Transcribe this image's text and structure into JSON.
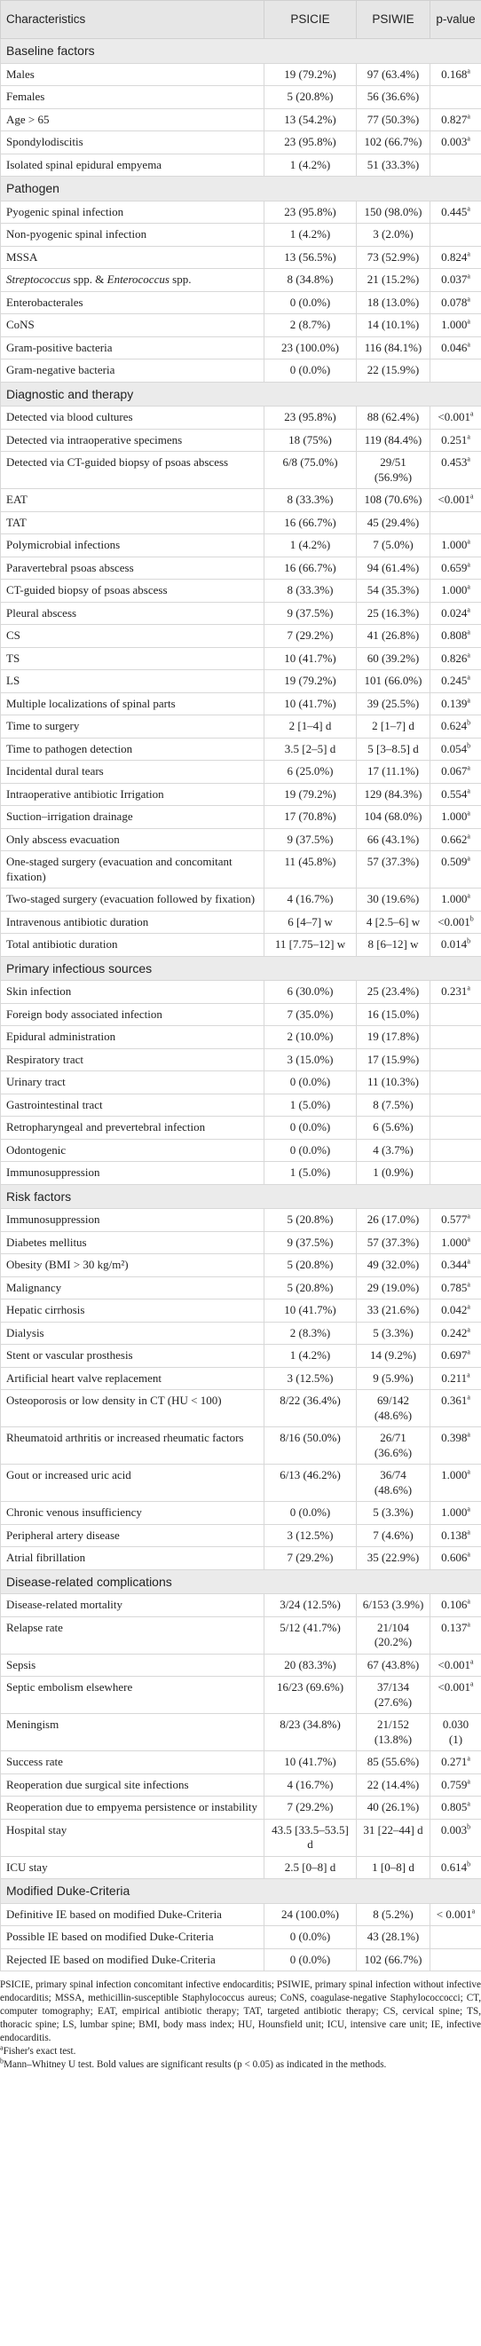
{
  "table": {
    "header": [
      "Characteristics",
      "PSICIE",
      "PSIWIE",
      "p-value"
    ],
    "sections": [
      {
        "title": "Baseline factors",
        "rows": [
          {
            "label": "Males",
            "cells": [
              "19 (79.2%)",
              "97 (63.4%)",
              "0.168"
            ],
            "sup": "a"
          },
          {
            "label": "Females",
            "cells": [
              "5 (20.8%)",
              "56 (36.6%)"
            ]
          },
          {
            "label": "Age > 65",
            "cells": [
              "13 (54.2%)",
              "77 (50.3%)",
              "0.827"
            ],
            "sup": "a"
          },
          {
            "label": "Spondylodiscitis",
            "cells": [
              "23 (95.8%)",
              "102 (66.7%)",
              "0.003"
            ],
            "sup": "a"
          },
          {
            "label": "Isolated spinal epidural empyema",
            "cells": [
              "1 (4.2%)",
              "51 (33.3%)"
            ]
          }
        ]
      },
      {
        "title": "Pathogen",
        "rows": [
          {
            "label": "Pyogenic spinal infection",
            "cells": [
              "23 (95.8%)",
              "150 (98.0%)",
              "0.445"
            ],
            "sup": "a"
          },
          {
            "label": "Non-pyogenic spinal infection",
            "cells": [
              "1 (4.2%)",
              "3 (2.0%)"
            ]
          },
          {
            "label": "MSSA",
            "cells": [
              "13 (56.5%)",
              "73 (52.9%)",
              "0.824"
            ],
            "sup": "a"
          },
          {
            "label": [
              {
                "text": "Streptococcus",
                "italic": true
              },
              {
                "text": " spp. & "
              },
              {
                "text": "Enterococcus",
                "italic": true
              },
              {
                "text": " spp."
              }
            ],
            "cells": [
              "8 (34.8%)",
              "21 (15.2%)",
              "0.037"
            ],
            "sup": "a"
          },
          {
            "label": "Enterobacterales",
            "cells": [
              "0 (0.0%)",
              "18 (13.0%)",
              "0.078"
            ],
            "sup": "a"
          },
          {
            "label": "CoNS",
            "cells": [
              "2 (8.7%)",
              "14 (10.1%)",
              "1.000"
            ],
            "sup": "a"
          },
          {
            "label": "Gram-positive bacteria",
            "cells": [
              "23 (100.0%)",
              "116 (84.1%)",
              "0.046"
            ],
            "sup": "a"
          },
          {
            "label": "Gram-negative bacteria",
            "cells": [
              "0 (0.0%)",
              "22 (15.9%)"
            ]
          }
        ]
      },
      {
        "title": "Diagnostic and therapy",
        "rows": [
          {
            "label": "Detected via blood cultures",
            "cells": [
              "23 (95.8%)",
              "88 (62.4%)",
              "<0.001"
            ],
            "sup": "a"
          },
          {
            "label": "Detected via intraoperative specimens",
            "cells": [
              "18 (75%)",
              "119 (84.4%)",
              "0.251"
            ],
            "sup": "a"
          },
          {
            "label": "Detected via CT-guided biopsy of psoas abscess",
            "cells": [
              "6/8 (75.0%)",
              "29/51 (56.9%)",
              "0.453"
            ],
            "sup": "a"
          },
          {
            "label": "EAT",
            "cells": [
              "8 (33.3%)",
              "108 (70.6%)",
              "<0.001"
            ],
            "sup": "a"
          },
          {
            "label": "TAT",
            "cells": [
              "16 (66.7%)",
              "45 (29.4%)"
            ]
          },
          {
            "label": "Polymicrobial infections",
            "cells": [
              "1 (4.2%)",
              "7 (5.0%)",
              "1.000"
            ],
            "sup": "a"
          },
          {
            "label": "Paravertebral psoas abscess",
            "cells": [
              "16 (66.7%)",
              "94 (61.4%)",
              "0.659"
            ],
            "sup": "a"
          },
          {
            "label": "CT-guided biopsy of psoas abscess",
            "cells": [
              "8 (33.3%)",
              "54 (35.3%)",
              "1.000"
            ],
            "sup": "a"
          },
          {
            "label": "Pleural abscess",
            "cells": [
              "9 (37.5%)",
              "25 (16.3%)",
              "0.024"
            ],
            "sup": "a"
          },
          {
            "label": "CS",
            "cells": [
              "7 (29.2%)",
              "41 (26.8%)",
              "0.808"
            ],
            "sup": "a"
          },
          {
            "label": "TS",
            "cells": [
              "10 (41.7%)",
              "60 (39.2%)",
              "0.826"
            ],
            "sup": "a"
          },
          {
            "label": "LS",
            "cells": [
              "19 (79.2%)",
              "101 (66.0%)",
              "0.245"
            ],
            "sup": "a"
          },
          {
            "label": "Multiple localizations of spinal parts",
            "cells": [
              "10 (41.7%)",
              "39 (25.5%)",
              "0.139"
            ],
            "sup": "a"
          },
          {
            "label": "Time to surgery",
            "cells": [
              "2 [1–4] d",
              "2 [1–7] d",
              "0.624"
            ],
            "sup": "b"
          },
          {
            "label": "Time to pathogen detection",
            "cells": [
              "3.5 [2–5] d",
              "5 [3–8.5] d",
              "0.054"
            ],
            "sup": "b"
          },
          {
            "label": "Incidental dural tears",
            "cells": [
              "6 (25.0%)",
              "17 (11.1%)",
              "0.067"
            ],
            "sup": "a"
          },
          {
            "label": "Intraoperative antibiotic Irrigation",
            "cells": [
              "19 (79.2%)",
              "129 (84.3%)",
              "0.554"
            ],
            "sup": "a"
          },
          {
            "label": "Suction–irrigation drainage",
            "cells": [
              "17 (70.8%)",
              "104 (68.0%)",
              "1.000"
            ],
            "sup": "a"
          },
          {
            "label": "Only abscess evacuation",
            "cells": [
              "9 (37.5%)",
              "66 (43.1%)",
              "0.662"
            ],
            "sup": "a"
          },
          {
            "label": "One-staged surgery (evacuation and concomitant fixation)",
            "cells": [
              "11 (45.8%)",
              "57 (37.3%)",
              "0.509"
            ],
            "sup": "a"
          },
          {
            "label": "Two-staged surgery (evacuation followed by fixation)",
            "cells": [
              "4 (16.7%)",
              "30 (19.6%)",
              "1.000"
            ],
            "sup": "a"
          },
          {
            "label": "Intravenous antibiotic duration",
            "cells": [
              "6 [4–7] w",
              "4 [2.5–6] w",
              "<0.001"
            ],
            "sup": "b"
          },
          {
            "label": "Total antibiotic duration",
            "cells": [
              "11 [7.75–12] w",
              "8 [6–12] w",
              "0.014"
            ],
            "sup": "b"
          }
        ]
      },
      {
        "title": "Primary infectious sources",
        "rows": [
          {
            "label": "Skin infection",
            "cells": [
              "6 (30.0%)",
              "25 (23.4%)",
              "0.231"
            ],
            "sup": "a"
          },
          {
            "label": "Foreign body associated infection",
            "cells": [
              "7 (35.0%)",
              "16 (15.0%)"
            ]
          },
          {
            "label": "Epidural administration",
            "cells": [
              "2 (10.0%)",
              "19 (17.8%)"
            ]
          },
          {
            "label": "Respiratory tract",
            "cells": [
              "3 (15.0%)",
              "17 (15.9%)"
            ]
          },
          {
            "label": "Urinary tract",
            "cells": [
              "0 (0.0%)",
              "11 (10.3%)"
            ]
          },
          {
            "label": "Gastrointestinal tract",
            "cells": [
              "1 (5.0%)",
              "8 (7.5%)"
            ]
          },
          {
            "label": "Retropharyngeal and prevertebral infection",
            "cells": [
              "0 (0.0%)",
              "6 (5.6%)"
            ]
          },
          {
            "label": "Odontogenic",
            "cells": [
              "0 (0.0%)",
              "4 (3.7%)"
            ]
          },
          {
            "label": "Immunosuppression",
            "cells": [
              "1 (5.0%)",
              "1 (0.9%)"
            ]
          }
        ]
      },
      {
        "title": "Risk factors",
        "rows": [
          {
            "label": "Immunosuppression",
            "cells": [
              "5 (20.8%)",
              "26 (17.0%)",
              "0.577"
            ],
            "sup": "a"
          },
          {
            "label": "Diabetes mellitus",
            "cells": [
              "9 (37.5%)",
              "57 (37.3%)",
              "1.000"
            ],
            "sup": "a"
          },
          {
            "label": "Obesity (BMI > 30 kg/m²)",
            "cells": [
              "5 (20.8%)",
              "49 (32.0%)",
              "0.344"
            ],
            "sup": "a"
          },
          {
            "label": "Malignancy",
            "cells": [
              "5 (20.8%)",
              "29 (19.0%)",
              "0.785"
            ],
            "sup": "a"
          },
          {
            "label": "Hepatic cirrhosis",
            "cells": [
              "10 (41.7%)",
              "33 (21.6%)",
              "0.042"
            ],
            "sup": "a"
          },
          {
            "label": "Dialysis",
            "cells": [
              "2 (8.3%)",
              "5 (3.3%)",
              "0.242"
            ],
            "sup": "a"
          },
          {
            "label": "Stent or vascular prosthesis",
            "cells": [
              "1 (4.2%)",
              "14 (9.2%)",
              "0.697"
            ],
            "sup": "a"
          },
          {
            "label": "Artificial heart valve replacement",
            "cells": [
              "3 (12.5%)",
              "9 (5.9%)",
              "0.211"
            ],
            "sup": "a"
          },
          {
            "label": "Osteoporosis or low density in CT (HU < 100)",
            "cells": [
              "8/22 (36.4%)",
              "69/142 (48.6%)",
              "0.361"
            ],
            "sup": "a"
          },
          {
            "label": "Rheumatoid arthritis or increased rheumatic factors",
            "cells": [
              "8/16 (50.0%)",
              "26/71 (36.6%)",
              "0.398"
            ],
            "sup": "a"
          },
          {
            "label": "Gout or increased uric acid",
            "cells": [
              "6/13 (46.2%)",
              "36/74 (48.6%)",
              "1.000"
            ],
            "sup": "a"
          },
          {
            "label": "Chronic venous insufficiency",
            "cells": [
              "0 (0.0%)",
              "5 (3.3%)",
              "1.000"
            ],
            "sup": "a"
          },
          {
            "label": "Peripheral artery disease",
            "cells": [
              "3 (12.5%)",
              "7 (4.6%)",
              "0.138"
            ],
            "sup": "a"
          },
          {
            "label": "Atrial fibrillation",
            "cells": [
              "7 (29.2%)",
              "35 (22.9%)",
              "0.606"
            ],
            "sup": "a"
          }
        ]
      },
      {
        "title": "Disease-related complications",
        "rows": [
          {
            "label": "Disease-related mortality",
            "cells": [
              "3/24 (12.5%)",
              "6/153 (3.9%)",
              "0.106"
            ],
            "sup": "a"
          },
          {
            "label": "Relapse rate",
            "cells": [
              "5/12 (41.7%)",
              "21/104 (20.2%)",
              "0.137"
            ],
            "sup": "a"
          },
          {
            "label": "Sepsis",
            "cells": [
              "20 (83.3%)",
              "67 (43.8%)",
              "<0.001"
            ],
            "sup": "a"
          },
          {
            "label": "Septic embolism elsewhere",
            "cells": [
              "16/23 (69.6%)",
              "37/134 (27.6%)",
              "<0.001"
            ],
            "sup": "a"
          },
          {
            "label": "Meningism",
            "cells": [
              "8/23 (34.8%)",
              "21/152 (13.8%)",
              "0.030 (1)"
            ]
          },
          {
            "label": "Success rate",
            "cells": [
              "10 (41.7%)",
              "85 (55.6%)",
              "0.271"
            ],
            "sup": "a"
          },
          {
            "label": "Reoperation due surgical site infections",
            "cells": [
              "4 (16.7%)",
              "22 (14.4%)",
              "0.759"
            ],
            "sup": "a"
          },
          {
            "label": "Reoperation due to empyema persistence or instability",
            "cells": [
              "7 (29.2%)",
              "40 (26.1%)",
              "0.805"
            ],
            "sup": "a"
          },
          {
            "label": "Hospital stay",
            "cells": [
              "43.5 [33.5–53.5] d",
              "31 [22–44] d",
              "0.003"
            ],
            "sup": "b"
          },
          {
            "label": "ICU stay",
            "cells": [
              "2.5 [0–8] d",
              "1 [0–8] d",
              "0.614"
            ],
            "sup": "b"
          }
        ]
      },
      {
        "title": "Modified Duke-Criteria",
        "rows": [
          {
            "label": "Definitive IE based on modified Duke-Criteria",
            "cells": [
              "24 (100.0%)",
              "8 (5.2%)",
              "< 0.001"
            ],
            "sup": "a"
          },
          {
            "label": "Possible IE based on modified Duke-Criteria",
            "cells": [
              "0 (0.0%)",
              "43 (28.1%)"
            ]
          },
          {
            "label": "Rejected IE based on modified Duke-Criteria",
            "cells": [
              "0 (0.0%)",
              "102 (66.7%)"
            ]
          }
        ]
      }
    ]
  },
  "footnotes": [
    {
      "text": "PSICIE, primary spinal infection concomitant infective endocarditis; PSIWIE, primary spinal infection without infective endocarditis; MSSA, methicillin-susceptible Staphylococcus aureus; CoNS, coagulase-negative Staphylococcocci; CT, computer tomography; EAT, empirical antibiotic therapy; TAT, targeted antibiotic therapy; CS, cervical spine; TS, thoracic spine; LS, lumbar spine; BMI, body mass index; HU, Hounsfield unit; ICU, intensive care unit; IE, infective endocarditis."
    },
    {
      "mark": "a",
      "text": "Fisher's exact test."
    },
    {
      "mark": "b",
      "text": "Mann–Whitney U test. Bold values are significant results (p < 0.05) as indicated in the methods."
    }
  ]
}
